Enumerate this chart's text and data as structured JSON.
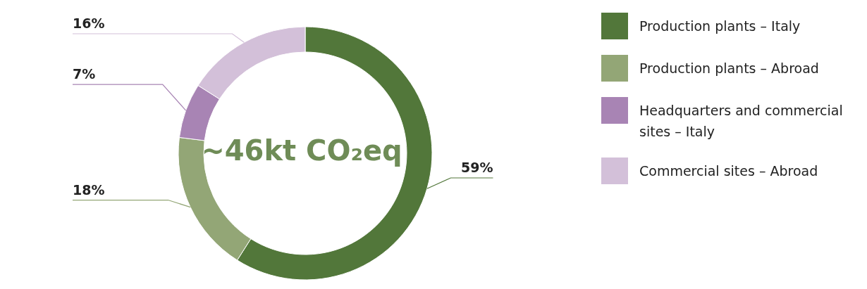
{
  "chart_data": {
    "type": "donut",
    "categories": [
      "Production plants – Italy",
      "Production plants – Abroad",
      "Headquarters and commercial sites – Italy",
      "Commercial sites – Abroad"
    ],
    "values": [
      59,
      18,
      7,
      16
    ],
    "value_labels": [
      "59%",
      "18%",
      "7%",
      "16%"
    ],
    "colors": [
      "#52773a",
      "#93a676",
      "#a884b4",
      "#d3c0d9"
    ],
    "annotations": [
      "~46kt CO₂eq"
    ],
    "legend": "right"
  }
}
